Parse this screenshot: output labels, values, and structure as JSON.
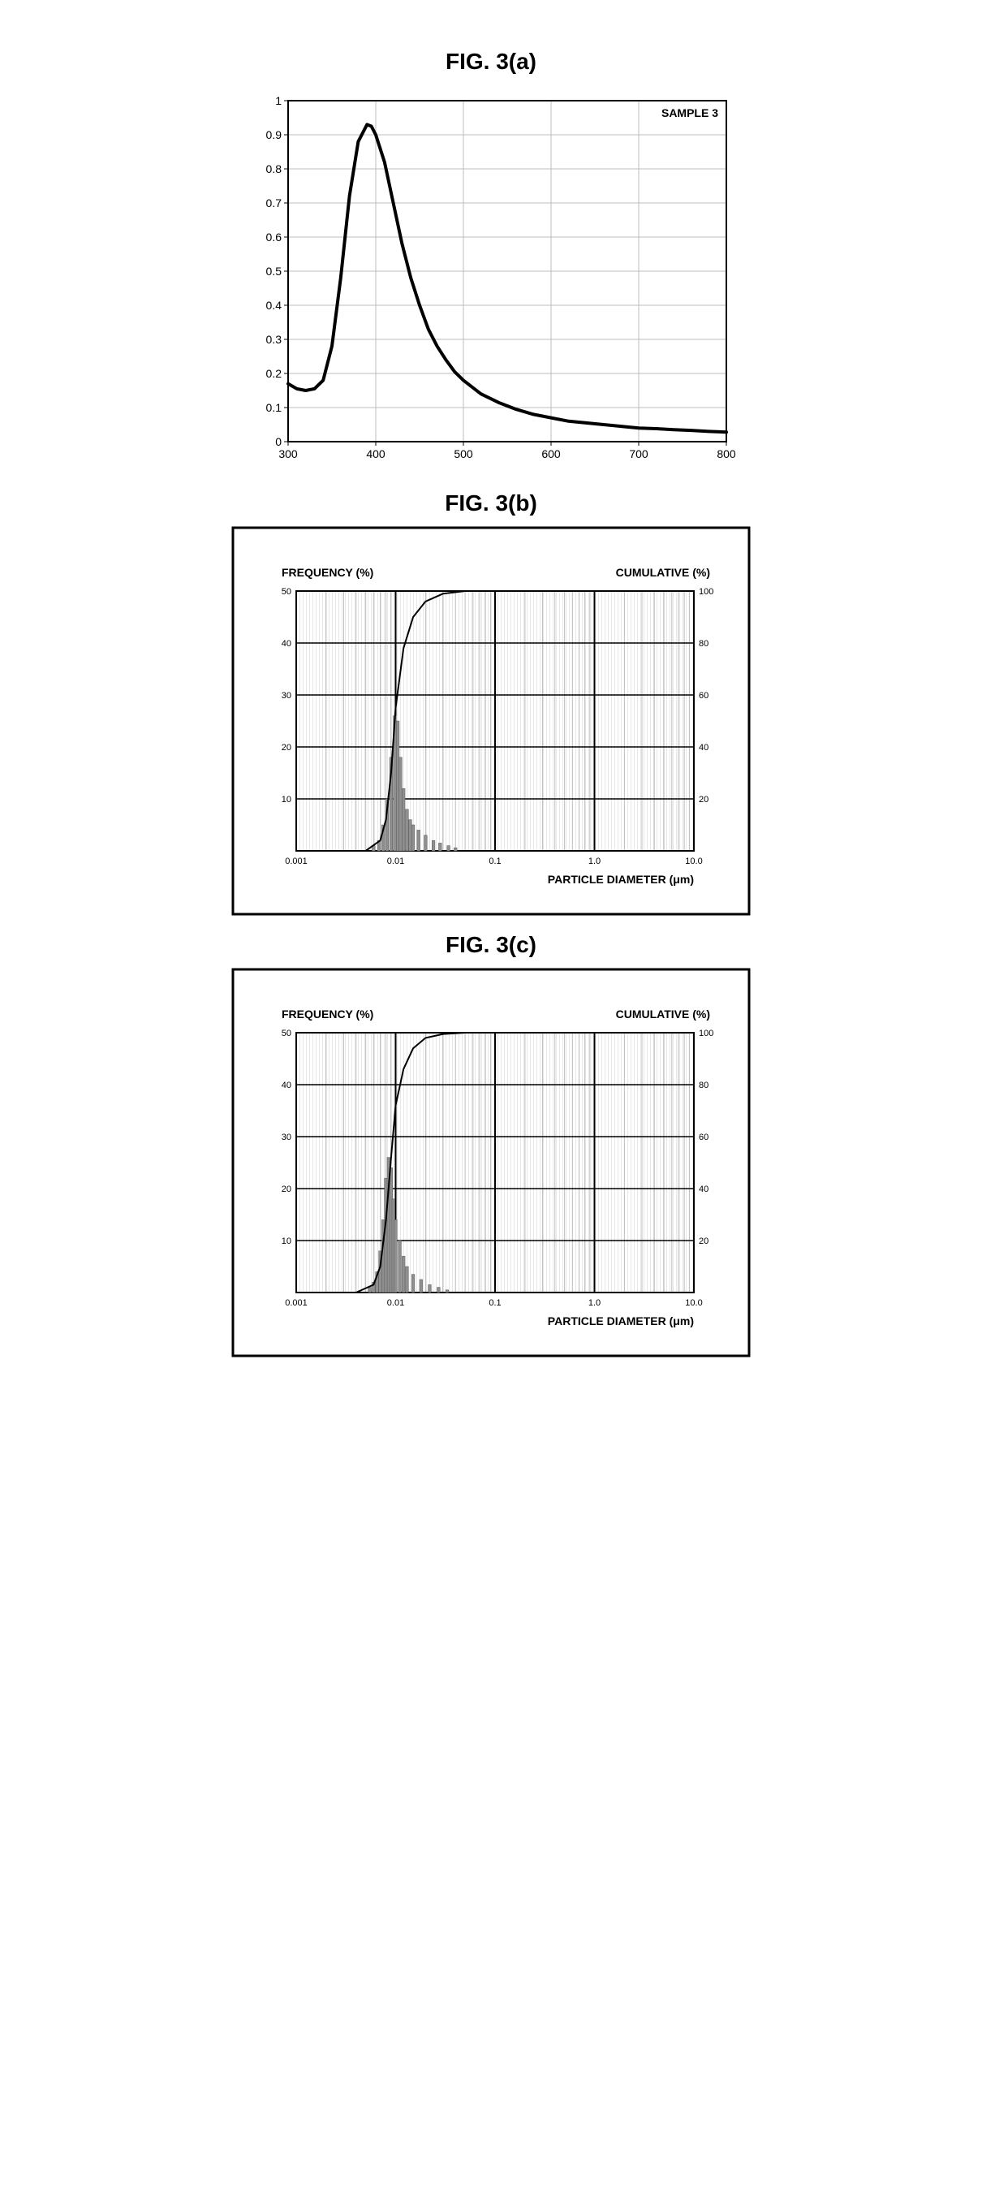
{
  "fig_a": {
    "title": "FIG. 3(a)",
    "type": "line",
    "inset_label": "SAMPLE 3",
    "xlim": [
      300,
      800
    ],
    "ylim": [
      0,
      1
    ],
    "xtick_step": 100,
    "ytick_step": 0.1,
    "xtick_labels": [
      "300",
      "400",
      "500",
      "600",
      "700",
      "800"
    ],
    "ytick_labels": [
      "0",
      "0.1",
      "0.2",
      "0.3",
      "0.4",
      "0.5",
      "0.6",
      "0.7",
      "0.8",
      "0.9",
      "1"
    ],
    "line_color": "#000000",
    "grid_color": "#bcbcbc",
    "frame_color": "#000000",
    "background_color": "#ffffff",
    "tick_font_size": 14,
    "inset_font_size": 14,
    "line_width": 4,
    "series": [
      [
        300,
        0.17
      ],
      [
        310,
        0.155
      ],
      [
        320,
        0.15
      ],
      [
        330,
        0.155
      ],
      [
        340,
        0.18
      ],
      [
        350,
        0.28
      ],
      [
        360,
        0.48
      ],
      [
        370,
        0.72
      ],
      [
        380,
        0.88
      ],
      [
        390,
        0.93
      ],
      [
        395,
        0.925
      ],
      [
        400,
        0.9
      ],
      [
        410,
        0.82
      ],
      [
        420,
        0.7
      ],
      [
        430,
        0.58
      ],
      [
        440,
        0.48
      ],
      [
        450,
        0.4
      ],
      [
        460,
        0.33
      ],
      [
        470,
        0.28
      ],
      [
        480,
        0.24
      ],
      [
        490,
        0.205
      ],
      [
        500,
        0.18
      ],
      [
        520,
        0.14
      ],
      [
        540,
        0.115
      ],
      [
        560,
        0.095
      ],
      [
        580,
        0.08
      ],
      [
        600,
        0.07
      ],
      [
        620,
        0.06
      ],
      [
        640,
        0.055
      ],
      [
        660,
        0.05
      ],
      [
        680,
        0.045
      ],
      [
        700,
        0.04
      ],
      [
        720,
        0.038
      ],
      [
        740,
        0.035
      ],
      [
        760,
        0.033
      ],
      [
        780,
        0.03
      ],
      [
        800,
        0.028
      ]
    ]
  },
  "fig_b": {
    "title": "FIG. 3(b)",
    "type": "histogram_cumulative",
    "outer_border_color": "#000000",
    "background_color": "#ffffff",
    "frequency_label": "FREQUENCY (%)",
    "cumulative_label": "CUMULATIVE (%)",
    "x_label": "PARTICLE DIAMETER (μm)",
    "label_font_size": 14,
    "tick_font_size": 11,
    "x_log": true,
    "x_decades": [
      0.001,
      0.01,
      0.1,
      1.0,
      10.0
    ],
    "x_decade_labels": [
      "0.001",
      "0.01",
      "0.1",
      "1.0",
      "10.0"
    ],
    "left_ylim": [
      0,
      50
    ],
    "left_ytick_step": 10,
    "left_ytick_labels": [
      "10",
      "20",
      "30",
      "40",
      "50"
    ],
    "right_ylim": [
      0,
      100
    ],
    "right_ytick_step": 20,
    "right_ytick_labels": [
      "20",
      "40",
      "60",
      "80",
      "100"
    ],
    "grid_color": "#bcbcbc",
    "grid_line_width": 1,
    "grid_hatch_color": "#cfcfcf",
    "bar_color": "#8f8f8f",
    "bar_outline": "#5a5a5a",
    "curve_color": "#000000",
    "curve_width": 2,
    "bars": [
      [
        0.006,
        1
      ],
      [
        0.0068,
        2
      ],
      [
        0.0075,
        5
      ],
      [
        0.0082,
        10
      ],
      [
        0.009,
        18
      ],
      [
        0.0098,
        26
      ],
      [
        0.0105,
        25
      ],
      [
        0.0112,
        18
      ],
      [
        0.012,
        12
      ],
      [
        0.013,
        8
      ],
      [
        0.014,
        6
      ],
      [
        0.015,
        5
      ],
      [
        0.017,
        4
      ],
      [
        0.02,
        3
      ],
      [
        0.024,
        2
      ],
      [
        0.028,
        1.5
      ],
      [
        0.034,
        1
      ],
      [
        0.04,
        0.6
      ]
    ],
    "cumulative": [
      [
        0.005,
        0
      ],
      [
        0.007,
        4
      ],
      [
        0.008,
        12
      ],
      [
        0.009,
        30
      ],
      [
        0.01,
        55
      ],
      [
        0.012,
        78
      ],
      [
        0.015,
        90
      ],
      [
        0.02,
        96
      ],
      [
        0.03,
        99
      ],
      [
        0.05,
        100
      ],
      [
        0.1,
        100
      ],
      [
        10,
        100
      ]
    ]
  },
  "fig_c": {
    "title": "FIG. 3(c)",
    "type": "histogram_cumulative",
    "outer_border_color": "#000000",
    "background_color": "#ffffff",
    "frequency_label": "FREQUENCY (%)",
    "cumulative_label": "CUMULATIVE (%)",
    "x_label": "PARTICLE DIAMETER (μm)",
    "label_font_size": 14,
    "tick_font_size": 11,
    "x_log": true,
    "x_decades": [
      0.001,
      0.01,
      0.1,
      1.0,
      10.0
    ],
    "x_decade_labels": [
      "0.001",
      "0.01",
      "0.1",
      "1.0",
      "10.0"
    ],
    "left_ylim": [
      0,
      50
    ],
    "left_ytick_step": 10,
    "left_ytick_labels": [
      "10",
      "20",
      "30",
      "40",
      "50"
    ],
    "right_ylim": [
      0,
      100
    ],
    "right_ytick_step": 20,
    "right_ytick_labels": [
      "20",
      "40",
      "60",
      "80",
      "100"
    ],
    "grid_color": "#bcbcbc",
    "grid_line_width": 1,
    "grid_hatch_color": "#cfcfcf",
    "bar_color": "#8f8f8f",
    "bar_outline": "#5a5a5a",
    "curve_color": "#000000",
    "curve_width": 2,
    "bars": [
      [
        0.0055,
        1
      ],
      [
        0.006,
        2
      ],
      [
        0.0065,
        4
      ],
      [
        0.007,
        8
      ],
      [
        0.0075,
        14
      ],
      [
        0.008,
        22
      ],
      [
        0.0085,
        26
      ],
      [
        0.009,
        24
      ],
      [
        0.0095,
        18
      ],
      [
        0.01,
        14
      ],
      [
        0.011,
        10
      ],
      [
        0.012,
        7
      ],
      [
        0.013,
        5
      ],
      [
        0.015,
        3.5
      ],
      [
        0.018,
        2.5
      ],
      [
        0.022,
        1.5
      ],
      [
        0.027,
        1
      ],
      [
        0.033,
        0.5
      ]
    ],
    "cumulative": [
      [
        0.004,
        0
      ],
      [
        0.006,
        3
      ],
      [
        0.007,
        10
      ],
      [
        0.008,
        28
      ],
      [
        0.009,
        52
      ],
      [
        0.01,
        72
      ],
      [
        0.012,
        86
      ],
      [
        0.015,
        94
      ],
      [
        0.02,
        98
      ],
      [
        0.03,
        99.5
      ],
      [
        0.05,
        100
      ],
      [
        0.1,
        100
      ],
      [
        10,
        100
      ]
    ]
  }
}
